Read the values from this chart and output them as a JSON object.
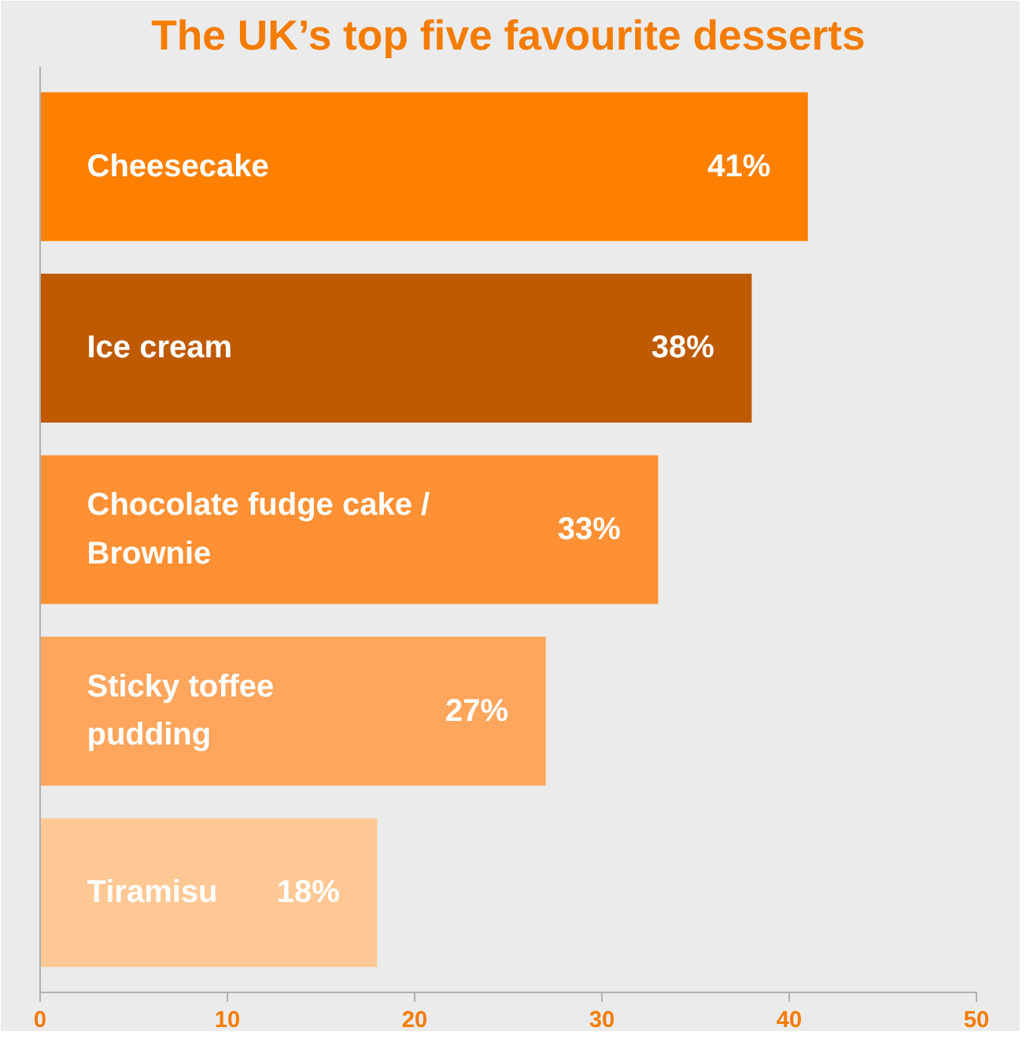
{
  "chart_data": {
    "type": "bar",
    "orientation": "horizontal",
    "title": "The UK’s top five favourite desserts",
    "categories": [
      "Cheesecake",
      "Ice cream",
      "Chocolate fudge cake /\nBrownie",
      "Sticky toffee\npudding",
      "Tiramisu"
    ],
    "values": [
      41,
      38,
      33,
      27,
      18
    ],
    "colors": [
      "#ff7f00",
      "#bf5a00",
      "#ff9033",
      "#ffa55c",
      "#ffc894"
    ],
    "value_labels": [
      "41%",
      "38%",
      "33%",
      "27%",
      "18%"
    ],
    "xlim": [
      0,
      50
    ],
    "xticks": [
      0,
      10,
      20,
      30,
      40,
      50
    ],
    "grid": false
  }
}
